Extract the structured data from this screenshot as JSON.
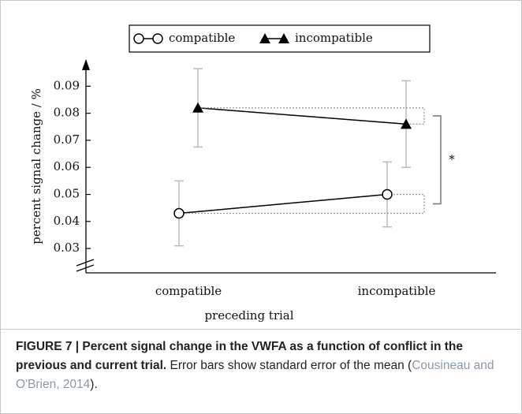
{
  "chart_data": {
    "type": "line",
    "y_label": "percent signal change / %",
    "x_label": "preceding trial",
    "categories": [
      "compatible",
      "incompatible"
    ],
    "series": [
      {
        "name": "compatible",
        "color": "#000000",
        "marker": "circle",
        "values": [
          0.043,
          0.05
        ],
        "errors": [
          0.012,
          0.012
        ]
      },
      {
        "name": "incompatible",
        "color": "#000000",
        "marker": "triangle",
        "values": [
          0.082,
          0.076
        ],
        "errors": [
          0.0145,
          0.016
        ]
      }
    ],
    "ylim": [
      0.021,
      0.1
    ],
    "yticks": [
      0.03,
      0.04,
      0.05,
      0.06,
      0.07,
      0.08,
      0.09
    ],
    "annotation": "*"
  },
  "caption": {
    "label": "FIGURE 7 | Percent signal change in the VWFA as a function of conflict in the previous and current trial.",
    "text": " Error bars show standard error of the mean (",
    "citation": "Cousineau and O'Brien, 2014",
    "end": ")."
  }
}
